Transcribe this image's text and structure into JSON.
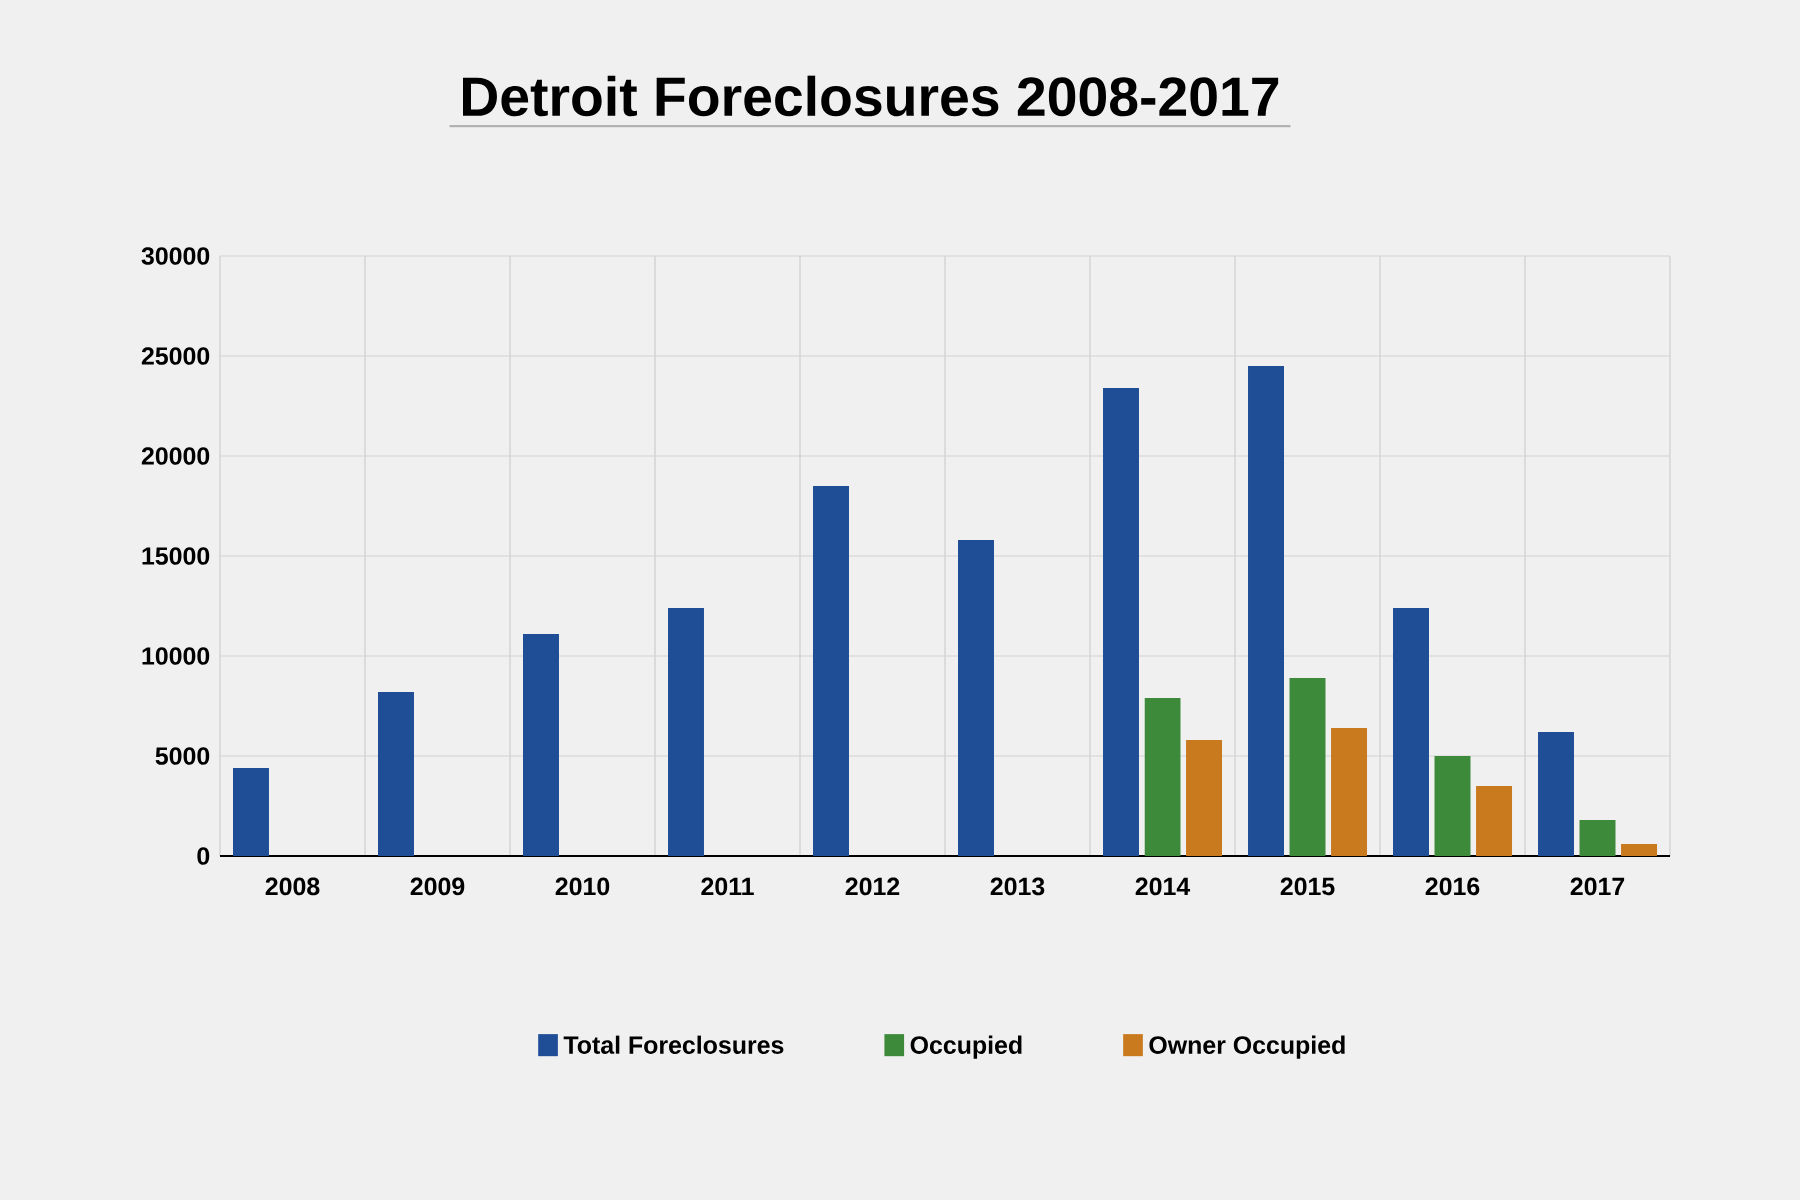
{
  "chart_data": {
    "type": "bar",
    "title": "Detroit Foreclosures 2008-2017",
    "categories": [
      "2008",
      "2009",
      "2010",
      "2011",
      "2012",
      "2013",
      "2014",
      "2015",
      "2016",
      "2017"
    ],
    "series": [
      {
        "name": "Total Foreclosures",
        "color": "#1f4e96",
        "values": [
          4400,
          8200,
          11100,
          12400,
          18500,
          15800,
          23400,
          24500,
          12400,
          6200
        ]
      },
      {
        "name": "Occupied",
        "color": "#3d8a3a",
        "values": [
          null,
          null,
          null,
          null,
          null,
          null,
          7900,
          8900,
          5000,
          1800
        ]
      },
      {
        "name": "Owner Occupied",
        "color": "#c97a1e",
        "values": [
          null,
          null,
          null,
          null,
          null,
          null,
          5800,
          6400,
          3500,
          600
        ]
      }
    ],
    "ylim": [
      0,
      30000
    ],
    "yticks": [
      0,
      5000,
      10000,
      15000,
      20000,
      25000,
      30000
    ],
    "grid": true,
    "legend": "bottom"
  }
}
